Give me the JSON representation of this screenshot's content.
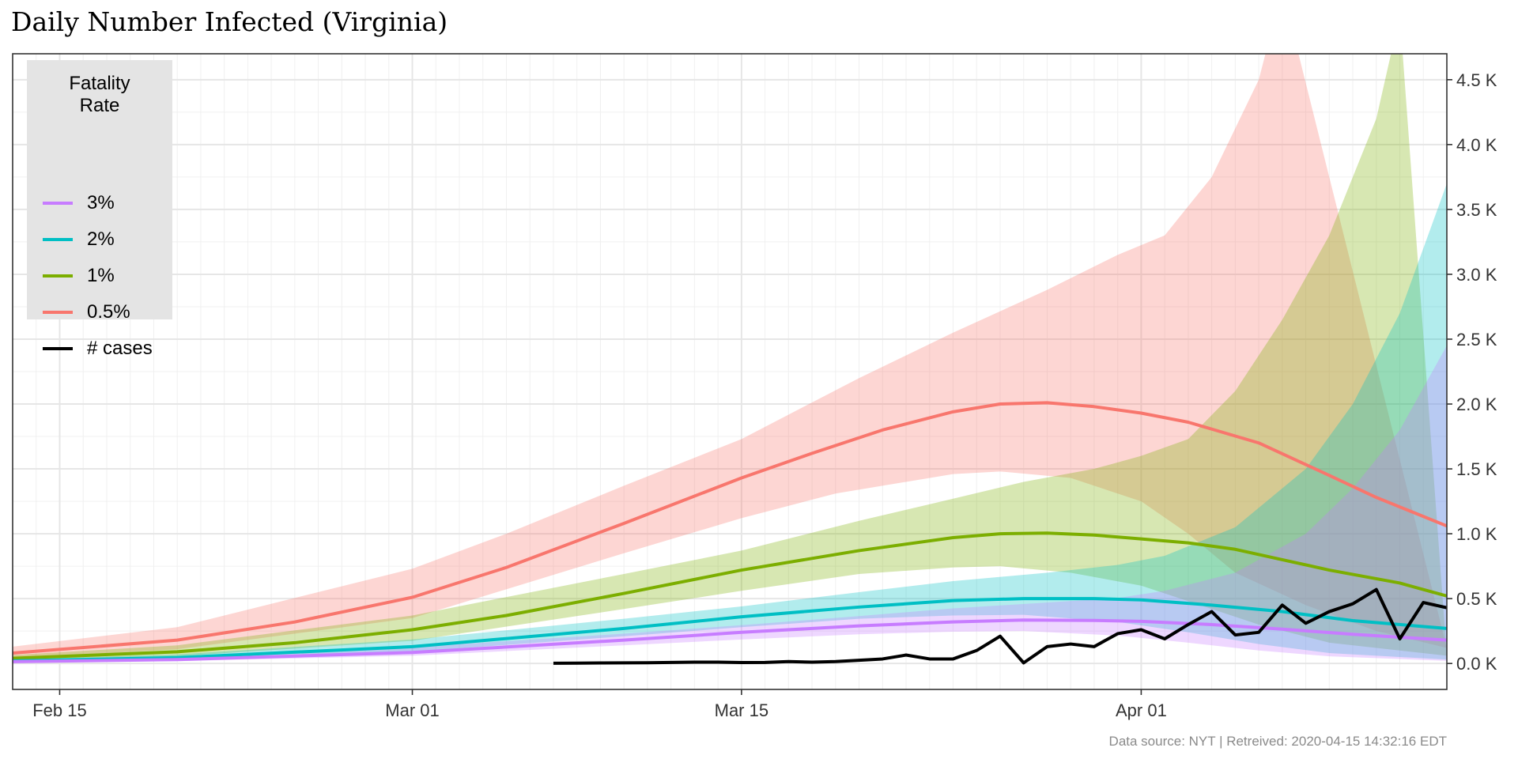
{
  "title": "Daily Number Infected (Virginia)",
  "caption": "Data source: NYT  |  Retreived: 2020-04-15 14:32:16 EDT",
  "legend": {
    "title": "Fatality\nRate",
    "items": [
      {
        "label": "3%",
        "color": "#c77cff"
      },
      {
        "label": "2%",
        "color": "#00bfc4"
      },
      {
        "label": "1%",
        "color": "#7cae00"
      },
      {
        "label": "0.5%",
        "color": "#f8766d"
      },
      {
        "label": "# cases",
        "color": "#000000"
      }
    ]
  },
  "chart_data": {
    "type": "line",
    "title": "Daily Number Infected (Virginia)",
    "x_range": [
      "2020-02-13",
      "2020-04-14"
    ],
    "y_range": [
      -200,
      4700
    ],
    "x_ticks": [
      {
        "date": "2020-02-15",
        "label": "Feb 15"
      },
      {
        "date": "2020-03-01",
        "label": "Mar 01"
      },
      {
        "date": "2020-03-15",
        "label": "Mar 15"
      },
      {
        "date": "2020-04-01",
        "label": "Apr 01"
      }
    ],
    "y_ticks": [
      {
        "value": 0,
        "label": "0.0 K"
      },
      {
        "value": 500,
        "label": "0.5 K"
      },
      {
        "value": 1000,
        "label": "1.0 K"
      },
      {
        "value": 1500,
        "label": "1.5 K"
      },
      {
        "value": 2000,
        "label": "2.0 K"
      },
      {
        "value": 2500,
        "label": "2.5 K"
      },
      {
        "value": 3000,
        "label": "3.0 K"
      },
      {
        "value": 3500,
        "label": "3.5 K"
      },
      {
        "value": 4000,
        "label": "4.0 K"
      },
      {
        "value": 4500,
        "label": "4.5 K"
      }
    ],
    "y_axis_position": "right",
    "grid": true,
    "legend_position": "top-left",
    "series": [
      {
        "name": "0.5%",
        "color": "#f8766d",
        "line": [
          [
            "2020-02-13",
            80
          ],
          [
            "2020-02-20",
            180
          ],
          [
            "2020-02-25",
            320
          ],
          [
            "2020-03-01",
            510
          ],
          [
            "2020-03-05",
            740
          ],
          [
            "2020-03-10",
            1080
          ],
          [
            "2020-03-15",
            1430
          ],
          [
            "2020-03-18",
            1620
          ],
          [
            "2020-03-21",
            1800
          ],
          [
            "2020-03-24",
            1940
          ],
          [
            "2020-03-26",
            2000
          ],
          [
            "2020-03-28",
            2010
          ],
          [
            "2020-03-30",
            1980
          ],
          [
            "2020-04-01",
            1930
          ],
          [
            "2020-04-03",
            1860
          ],
          [
            "2020-04-06",
            1700
          ],
          [
            "2020-04-09",
            1450
          ],
          [
            "2020-04-11",
            1280
          ],
          [
            "2020-04-14",
            1060
          ]
        ],
        "lower": [
          [
            "2020-02-13",
            40
          ],
          [
            "2020-02-20",
            110
          ],
          [
            "2020-03-01",
            350
          ],
          [
            "2020-03-10",
            850
          ],
          [
            "2020-03-15",
            1120
          ],
          [
            "2020-03-19",
            1310
          ],
          [
            "2020-03-24",
            1460
          ],
          [
            "2020-03-26",
            1480
          ],
          [
            "2020-03-29",
            1430
          ],
          [
            "2020-04-01",
            1250
          ],
          [
            "2020-04-03",
            1000
          ],
          [
            "2020-04-05",
            700
          ],
          [
            "2020-04-08",
            450
          ],
          [
            "2020-04-11",
            250
          ],
          [
            "2020-04-14",
            120
          ]
        ],
        "upper": [
          [
            "2020-02-13",
            130
          ],
          [
            "2020-02-20",
            280
          ],
          [
            "2020-03-01",
            730
          ],
          [
            "2020-03-05",
            1000
          ],
          [
            "2020-03-10",
            1370
          ],
          [
            "2020-03-15",
            1730
          ],
          [
            "2020-03-20",
            2200
          ],
          [
            "2020-03-24",
            2550
          ],
          [
            "2020-03-28",
            2880
          ],
          [
            "2020-03-31",
            3150
          ],
          [
            "2020-04-02",
            3300
          ],
          [
            "2020-04-04",
            3750
          ],
          [
            "2020-04-06",
            4500
          ],
          [
            "2020-04-07",
            5200
          ]
        ]
      },
      {
        "name": "1%",
        "color": "#7cae00",
        "line": [
          [
            "2020-02-13",
            40
          ],
          [
            "2020-02-20",
            90
          ],
          [
            "2020-02-25",
            160
          ],
          [
            "2020-03-01",
            260
          ],
          [
            "2020-03-05",
            370
          ],
          [
            "2020-03-10",
            540
          ],
          [
            "2020-03-15",
            720
          ],
          [
            "2020-03-20",
            870
          ],
          [
            "2020-03-24",
            970
          ],
          [
            "2020-03-26",
            1000
          ],
          [
            "2020-03-28",
            1005
          ],
          [
            "2020-03-30",
            990
          ],
          [
            "2020-04-01",
            960
          ],
          [
            "2020-04-03",
            930
          ],
          [
            "2020-04-05",
            880
          ],
          [
            "2020-04-07",
            800
          ],
          [
            "2020-04-09",
            720
          ],
          [
            "2020-04-12",
            620
          ],
          [
            "2020-04-14",
            520
          ]
        ],
        "lower": [
          [
            "2020-02-13",
            20
          ],
          [
            "2020-02-20",
            55
          ],
          [
            "2020-03-01",
            175
          ],
          [
            "2020-03-10",
            420
          ],
          [
            "2020-03-15",
            560
          ],
          [
            "2020-03-20",
            690
          ],
          [
            "2020-03-24",
            740
          ],
          [
            "2020-03-26",
            750
          ],
          [
            "2020-03-29",
            700
          ],
          [
            "2020-04-01",
            600
          ],
          [
            "2020-04-03",
            480
          ],
          [
            "2020-04-06",
            300
          ],
          [
            "2020-04-09",
            160
          ],
          [
            "2020-04-14",
            60
          ]
        ],
        "upper": [
          [
            "2020-02-13",
            65
          ],
          [
            "2020-02-20",
            140
          ],
          [
            "2020-03-01",
            370
          ],
          [
            "2020-03-10",
            690
          ],
          [
            "2020-03-15",
            870
          ],
          [
            "2020-03-20",
            1100
          ],
          [
            "2020-03-24",
            1270
          ],
          [
            "2020-03-27",
            1400
          ],
          [
            "2020-03-30",
            1500
          ],
          [
            "2020-04-01",
            1600
          ],
          [
            "2020-04-03",
            1730
          ],
          [
            "2020-04-05",
            2100
          ],
          [
            "2020-04-07",
            2650
          ],
          [
            "2020-04-09",
            3300
          ],
          [
            "2020-04-11",
            4200
          ],
          [
            "2020-04-12",
            5000
          ]
        ]
      },
      {
        "name": "2%",
        "color": "#00bfc4",
        "line": [
          [
            "2020-02-13",
            20
          ],
          [
            "2020-02-20",
            45
          ],
          [
            "2020-03-01",
            130
          ],
          [
            "2020-03-10",
            270
          ],
          [
            "2020-03-15",
            360
          ],
          [
            "2020-03-20",
            435
          ],
          [
            "2020-03-24",
            485
          ],
          [
            "2020-03-27",
            500
          ],
          [
            "2020-03-30",
            500
          ],
          [
            "2020-04-01",
            490
          ],
          [
            "2020-04-04",
            450
          ],
          [
            "2020-04-07",
            400
          ],
          [
            "2020-04-10",
            330
          ],
          [
            "2020-04-14",
            270
          ]
        ],
        "lower": [
          [
            "2020-02-13",
            10
          ],
          [
            "2020-02-20",
            28
          ],
          [
            "2020-03-01",
            90
          ],
          [
            "2020-03-10",
            210
          ],
          [
            "2020-03-15",
            280
          ],
          [
            "2020-03-20",
            345
          ],
          [
            "2020-03-24",
            370
          ],
          [
            "2020-03-27",
            375
          ],
          [
            "2020-03-31",
            320
          ],
          [
            "2020-04-03",
            240
          ],
          [
            "2020-04-06",
            150
          ],
          [
            "2020-04-09",
            80
          ],
          [
            "2020-04-14",
            30
          ]
        ],
        "upper": [
          [
            "2020-02-13",
            32
          ],
          [
            "2020-02-20",
            70
          ],
          [
            "2020-03-01",
            185
          ],
          [
            "2020-03-10",
            345
          ],
          [
            "2020-03-15",
            440
          ],
          [
            "2020-03-20",
            550
          ],
          [
            "2020-03-24",
            635
          ],
          [
            "2020-03-28",
            700
          ],
          [
            "2020-03-31",
            760
          ],
          [
            "2020-04-02",
            830
          ],
          [
            "2020-04-05",
            1050
          ],
          [
            "2020-04-08",
            1500
          ],
          [
            "2020-04-10",
            2000
          ],
          [
            "2020-04-12",
            2700
          ],
          [
            "2020-04-14",
            3700
          ]
        ]
      },
      {
        "name": "3%",
        "color": "#c77cff",
        "line": [
          [
            "2020-02-13",
            14
          ],
          [
            "2020-02-20",
            30
          ],
          [
            "2020-03-01",
            85
          ],
          [
            "2020-03-10",
            180
          ],
          [
            "2020-03-15",
            240
          ],
          [
            "2020-03-20",
            290
          ],
          [
            "2020-03-24",
            320
          ],
          [
            "2020-03-27",
            335
          ],
          [
            "2020-03-30",
            332
          ],
          [
            "2020-04-01",
            325
          ],
          [
            "2020-04-04",
            300
          ],
          [
            "2020-04-07",
            265
          ],
          [
            "2020-04-10",
            225
          ],
          [
            "2020-04-14",
            180
          ]
        ],
        "lower": [
          [
            "2020-02-13",
            7
          ],
          [
            "2020-02-20",
            18
          ],
          [
            "2020-03-01",
            60
          ],
          [
            "2020-03-10",
            140
          ],
          [
            "2020-03-15",
            185
          ],
          [
            "2020-03-20",
            225
          ],
          [
            "2020-03-24",
            245
          ],
          [
            "2020-03-27",
            250
          ],
          [
            "2020-03-31",
            215
          ],
          [
            "2020-04-03",
            160
          ],
          [
            "2020-04-06",
            100
          ],
          [
            "2020-04-09",
            55
          ],
          [
            "2020-04-14",
            20
          ]
        ],
        "upper": [
          [
            "2020-02-13",
            21
          ],
          [
            "2020-02-20",
            46
          ],
          [
            "2020-03-01",
            125
          ],
          [
            "2020-03-10",
            230
          ],
          [
            "2020-03-15",
            295
          ],
          [
            "2020-03-20",
            365
          ],
          [
            "2020-03-24",
            425
          ],
          [
            "2020-03-28",
            470
          ],
          [
            "2020-03-31",
            505
          ],
          [
            "2020-04-02",
            560
          ],
          [
            "2020-04-05",
            700
          ],
          [
            "2020-04-08",
            1000
          ],
          [
            "2020-04-10",
            1350
          ],
          [
            "2020-04-12",
            1800
          ],
          [
            "2020-04-14",
            2450
          ]
        ]
      },
      {
        "name": "# cases",
        "color": "#000000",
        "line": [
          [
            "2020-03-07",
            2
          ],
          [
            "2020-03-08",
            3
          ],
          [
            "2020-03-09",
            4
          ],
          [
            "2020-03-10",
            5
          ],
          [
            "2020-03-11",
            6
          ],
          [
            "2020-03-12",
            8
          ],
          [
            "2020-03-13",
            10
          ],
          [
            "2020-03-14",
            10
          ],
          [
            "2020-03-15",
            7
          ],
          [
            "2020-03-16",
            8
          ],
          [
            "2020-03-17",
            15
          ],
          [
            "2020-03-18",
            10
          ],
          [
            "2020-03-19",
            15
          ],
          [
            "2020-03-20",
            25
          ],
          [
            "2020-03-21",
            35
          ],
          [
            "2020-03-22",
            65
          ],
          [
            "2020-03-23",
            35
          ],
          [
            "2020-03-24",
            35
          ],
          [
            "2020-03-25",
            100
          ],
          [
            "2020-03-26",
            210
          ],
          [
            "2020-03-27",
            5
          ],
          [
            "2020-03-28",
            130
          ],
          [
            "2020-03-29",
            150
          ],
          [
            "2020-03-30",
            130
          ],
          [
            "2020-03-31",
            230
          ],
          [
            "2020-04-01",
            260
          ],
          [
            "2020-04-02",
            190
          ],
          [
            "2020-04-03",
            300
          ],
          [
            "2020-04-04",
            400
          ],
          [
            "2020-04-05",
            220
          ],
          [
            "2020-04-06",
            240
          ],
          [
            "2020-04-07",
            450
          ],
          [
            "2020-04-08",
            310
          ],
          [
            "2020-04-09",
            400
          ],
          [
            "2020-04-10",
            460
          ],
          [
            "2020-04-11",
            570
          ],
          [
            "2020-04-12",
            190
          ],
          [
            "2020-04-13",
            470
          ],
          [
            "2020-04-14",
            430
          ]
        ]
      }
    ]
  }
}
